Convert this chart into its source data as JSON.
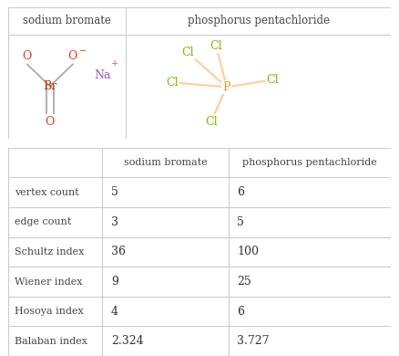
{
  "col1_header": "sodium bromate",
  "col2_header": "phosphorus pentachloride",
  "rows": [
    {
      "label": "vertex count",
      "val1": "5",
      "val2": "6"
    },
    {
      "label": "edge count",
      "val1": "3",
      "val2": "5"
    },
    {
      "label": "Schultz index",
      "val1": "36",
      "val2": "100"
    },
    {
      "label": "Wiener index",
      "val1": "9",
      "val2": "25"
    },
    {
      "label": "Hosoya index",
      "val1": "4",
      "val2": "6"
    },
    {
      "label": "Balaban index",
      "val1": "2.324",
      "val2": "3.727"
    }
  ],
  "mol1_O_color": "#dd3322",
  "mol1_Br_color": "#bb3300",
  "mol1_Na_color": "#9955cc",
  "mol2_Cl_color": "#77bb00",
  "mol2_P_color": "#ee9922",
  "bond_color": "#ffcc99",
  "bond_color2": "#aaaaaa",
  "grid_color": "#cccccc",
  "text_color": "#444444",
  "val_color": "#333333"
}
